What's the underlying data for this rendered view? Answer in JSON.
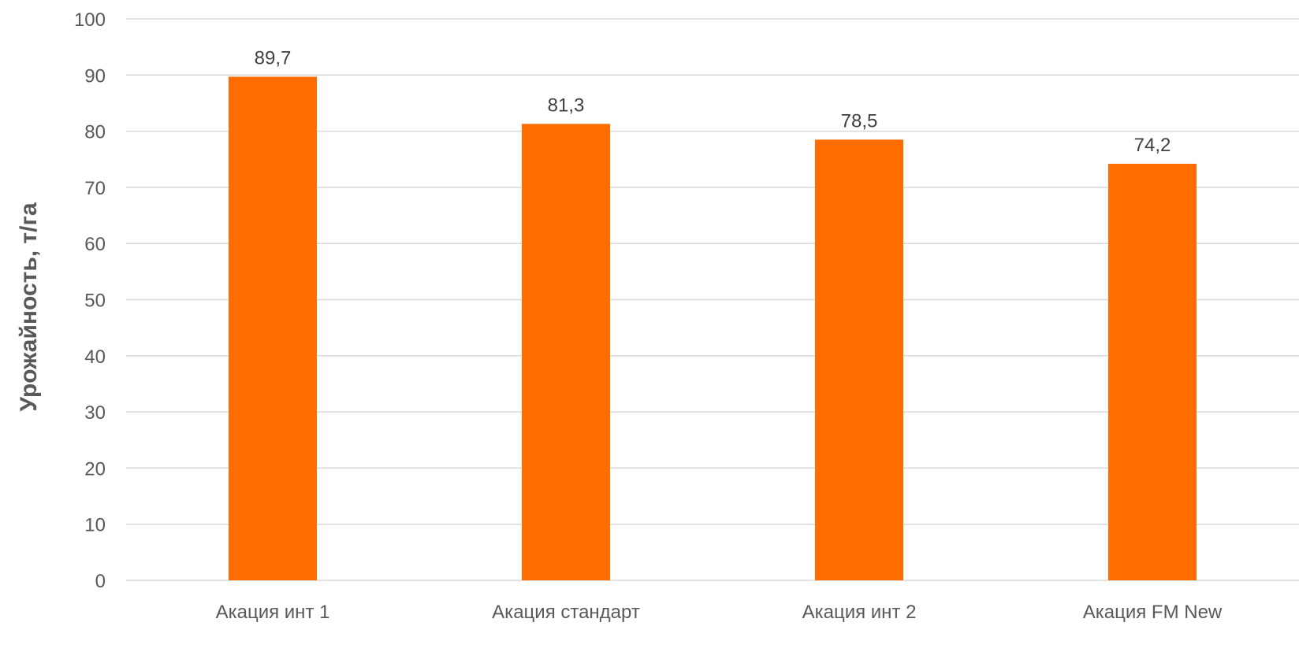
{
  "chart_data": {
    "type": "bar",
    "title": "",
    "xlabel": "",
    "ylabel": "Урожайность, т/га",
    "categories": [
      "Акация инт 1",
      "Акация стандарт",
      "Акация инт 2",
      "Акация FM New"
    ],
    "values": [
      89.7,
      81.3,
      78.5,
      74.2
    ],
    "data_labels": [
      "89,7",
      "81,3",
      "78,5",
      "74,2"
    ],
    "ylim": [
      0,
      100
    ],
    "yticks": [
      0,
      10,
      20,
      30,
      40,
      50,
      60,
      70,
      80,
      90,
      100
    ],
    "grid": true,
    "legend": "none",
    "bar_color": "#ff6d00"
  }
}
